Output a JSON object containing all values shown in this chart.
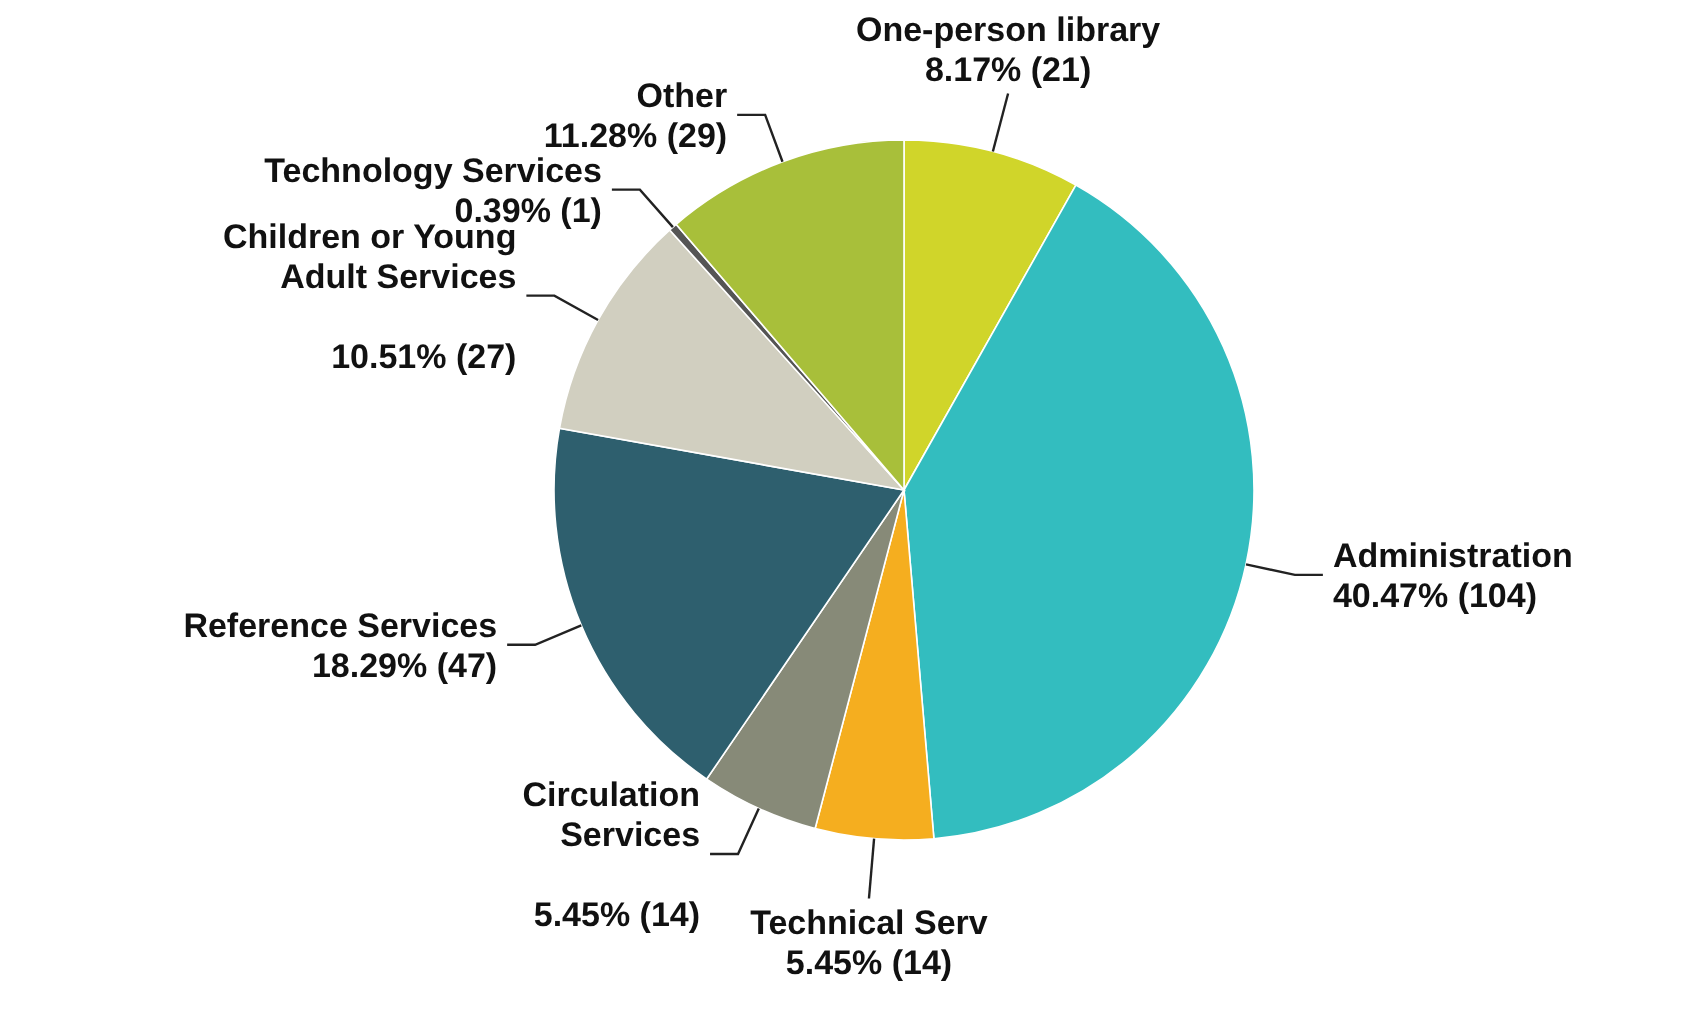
{
  "chart_data": {
    "type": "pie",
    "categories": [
      "One-person library",
      "Administration",
      "Technical Serv",
      "Circulation\nServices",
      "Reference Services",
      "Children or Young\nAdult Services",
      "Technology Services",
      "Other"
    ],
    "values": [
      21,
      104,
      14,
      14,
      47,
      27,
      1,
      29
    ],
    "value_labels": [
      "8.17% (21)",
      "40.47% (104)",
      "5.45% (14)",
      "5.45% (14)",
      "18.29% (47)",
      "10.51% (27)",
      "0.39% (1)",
      "11.28% (29)"
    ],
    "colors": [
      "#d0d52a",
      "#33bdbf",
      "#f5ae1f",
      "#878a78",
      "#2e5f6e",
      "#d1cfc0",
      "#555555",
      "#a8bf3a"
    ],
    "legend": false
  }
}
